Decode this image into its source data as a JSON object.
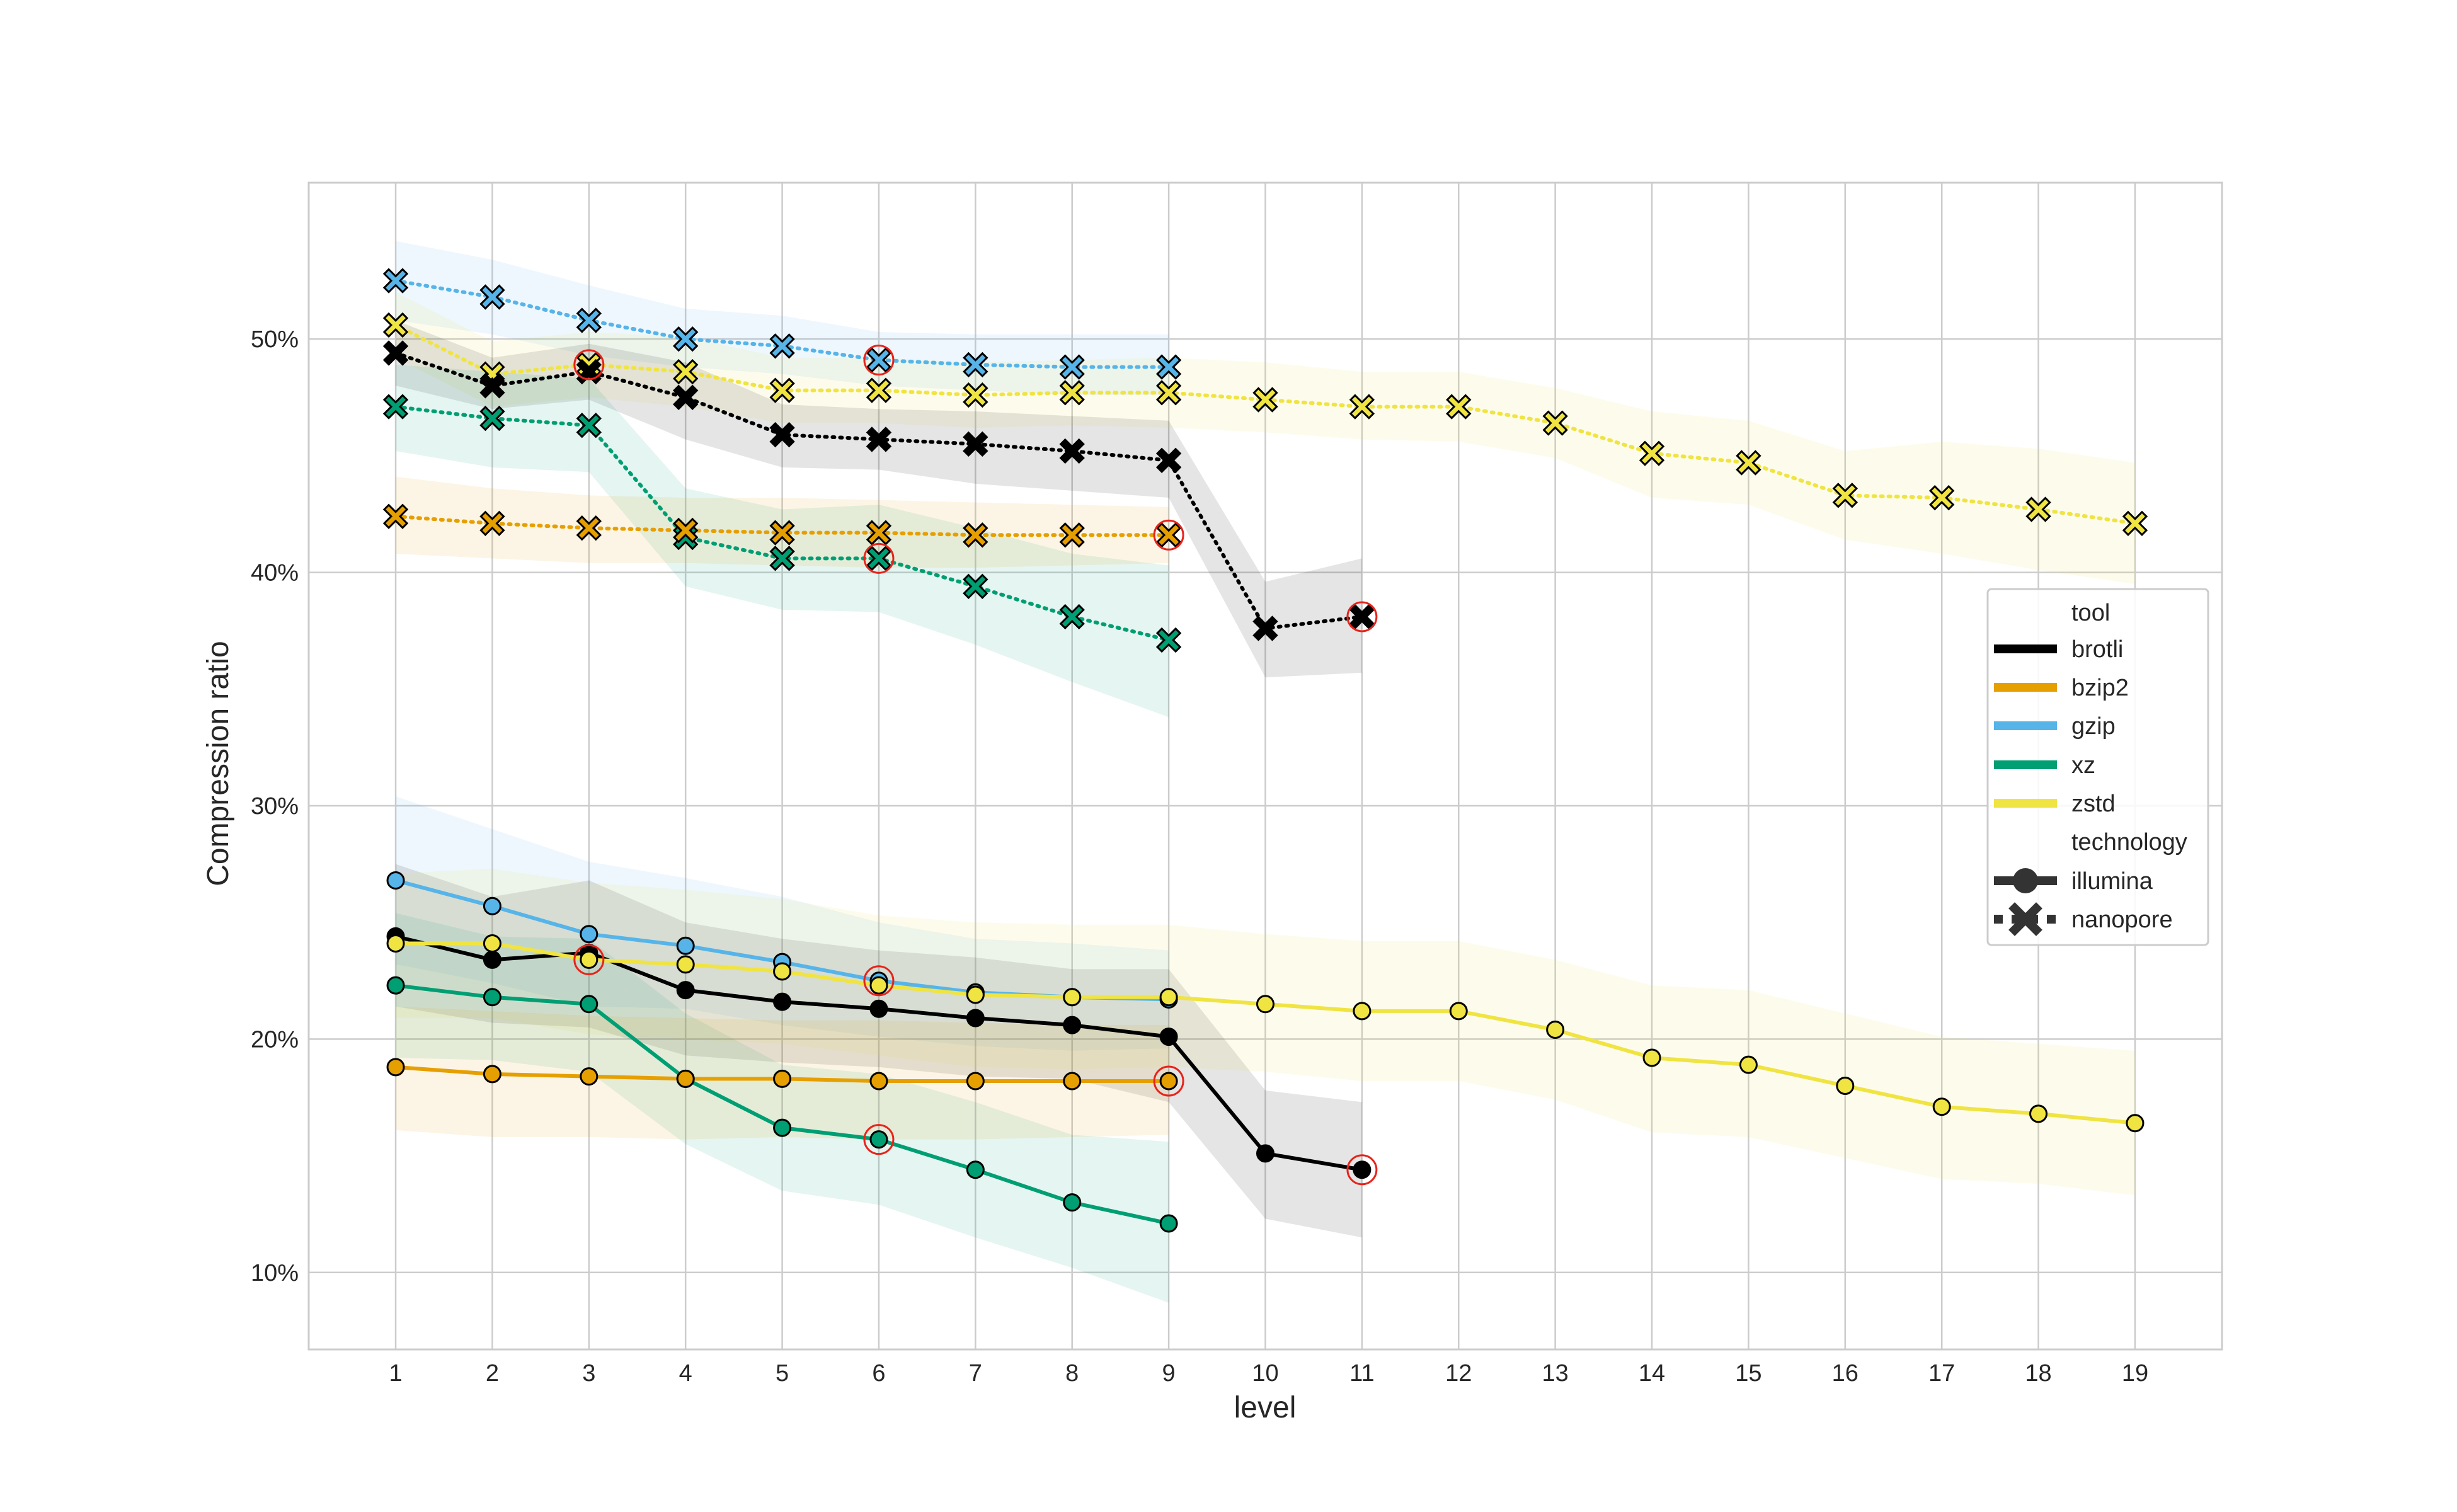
{
  "chart_data": {
    "type": "line",
    "xlabel": "level",
    "ylabel": "Compression ratio",
    "x_ticks": [
      "1",
      "2",
      "3",
      "4",
      "5",
      "6",
      "7",
      "8",
      "9",
      "10",
      "11",
      "12",
      "13",
      "14",
      "15",
      "16",
      "17",
      "18",
      "19"
    ],
    "y_ticks": [
      "10%",
      "20%",
      "30%",
      "40%",
      "50%"
    ],
    "y_tick_values": [
      10,
      20,
      30,
      40,
      50
    ],
    "xlim": [
      0.1,
      19.9
    ],
    "ylim": [
      6.7,
      56.7
    ],
    "colors": {
      "brotli": "#000000",
      "bzip2": "#e69f00",
      "gzip": "#56b4e9",
      "xz": "#009e73",
      "zstd": "#f0e442"
    },
    "series": [
      {
        "tool": "gzip",
        "technology": "nanopore",
        "x": [
          1,
          2,
          3,
          4,
          5,
          6,
          7,
          8,
          9
        ],
        "values": [
          52.5,
          51.8,
          50.8,
          50.0,
          49.7,
          49.1,
          48.9,
          48.8,
          48.8
        ],
        "lower": [
          50.8,
          50.2,
          49.3,
          48.8,
          48.5,
          48.0,
          47.8,
          47.6,
          47.6
        ],
        "upper": [
          54.2,
          53.4,
          52.3,
          51.3,
          51.0,
          50.3,
          50.2,
          50.2,
          50.2
        ],
        "optimal_level": 6
      },
      {
        "tool": "zstd",
        "technology": "nanopore",
        "x": [
          1,
          2,
          3,
          4,
          5,
          6,
          7,
          8,
          9,
          10,
          11,
          12,
          13,
          14,
          15,
          16,
          17,
          18,
          19
        ],
        "values": [
          50.6,
          48.5,
          48.9,
          48.6,
          47.8,
          47.8,
          47.6,
          47.7,
          47.7,
          47.4,
          47.1,
          47.1,
          46.4,
          45.1,
          44.7,
          43.3,
          43.2,
          42.7,
          42.1
        ],
        "lower": [
          49.2,
          47.1,
          47.5,
          47.1,
          46.4,
          46.4,
          46.2,
          46.3,
          46.2,
          46.0,
          45.7,
          45.6,
          44.9,
          43.2,
          42.9,
          41.4,
          40.8,
          40.1,
          39.5
        ],
        "upper": [
          52.0,
          49.9,
          50.3,
          50.1,
          49.2,
          49.2,
          49.0,
          49.1,
          49.2,
          49.0,
          48.6,
          48.6,
          47.9,
          46.9,
          46.5,
          45.2,
          45.6,
          45.3,
          44.7
        ],
        "optimal_level": 3
      },
      {
        "tool": "brotli",
        "technology": "nanopore",
        "x": [
          1,
          2,
          3,
          4,
          5,
          6,
          7,
          8,
          9,
          10,
          11
        ],
        "values": [
          49.4,
          48.0,
          48.6,
          47.5,
          45.9,
          45.7,
          45.5,
          45.2,
          44.8,
          37.6,
          38.1
        ],
        "lower": [
          48.0,
          47.0,
          47.4,
          45.7,
          44.5,
          44.4,
          43.8,
          43.5,
          43.2,
          35.5,
          35.7
        ],
        "upper": [
          50.8,
          49.2,
          49.8,
          49.0,
          47.2,
          47.0,
          46.9,
          46.7,
          46.5,
          39.6,
          40.6
        ],
        "optimal_level": 11
      },
      {
        "tool": "xz",
        "technology": "nanopore",
        "x": [
          1,
          2,
          3,
          4,
          5,
          6,
          7,
          8,
          9
        ],
        "values": [
          47.1,
          46.6,
          46.3,
          41.5,
          40.6,
          40.6,
          39.4,
          38.1,
          37.1
        ],
        "lower": [
          45.2,
          44.5,
          44.3,
          39.4,
          38.4,
          38.3,
          36.9,
          35.3,
          33.8
        ],
        "upper": [
          48.9,
          48.6,
          48.3,
          43.6,
          42.7,
          42.9,
          41.9,
          40.8,
          40.3
        ],
        "optimal_level": 6
      },
      {
        "tool": "bzip2",
        "technology": "nanopore",
        "x": [
          1,
          2,
          3,
          4,
          5,
          6,
          7,
          8,
          9
        ],
        "values": [
          42.4,
          42.1,
          41.9,
          41.8,
          41.7,
          41.7,
          41.6,
          41.6,
          41.6
        ],
        "lower": [
          40.8,
          40.6,
          40.4,
          40.4,
          40.3,
          40.2,
          40.2,
          40.3,
          40.4
        ],
        "upper": [
          44.1,
          43.6,
          43.3,
          43.2,
          43.2,
          43.1,
          43.0,
          42.9,
          42.8
        ],
        "optimal_level": 9
      },
      {
        "tool": "gzip",
        "technology": "illumina",
        "x": [
          1,
          2,
          3,
          4,
          5,
          6,
          7,
          8,
          9
        ],
        "values": [
          26.8,
          25.7,
          24.5,
          24.0,
          23.3,
          22.5,
          22.0,
          21.8,
          21.7
        ],
        "lower": [
          23.2,
          22.4,
          21.4,
          21.3,
          20.6,
          20.1,
          19.7,
          19.5,
          19.6
        ],
        "upper": [
          30.4,
          29.0,
          27.6,
          26.9,
          26.1,
          25.0,
          24.3,
          24.1,
          23.8
        ],
        "optimal_level": 6
      },
      {
        "tool": "brotli",
        "technology": "illumina",
        "x": [
          1,
          2,
          3,
          4,
          5,
          6,
          7,
          8,
          9,
          10,
          11
        ],
        "values": [
          24.4,
          23.4,
          23.7,
          22.1,
          21.6,
          21.3,
          20.9,
          20.6,
          20.1,
          15.1,
          14.4
        ],
        "lower": [
          21.4,
          20.7,
          20.5,
          19.3,
          19.0,
          18.8,
          18.4,
          18.3,
          17.3,
          12.3,
          11.5
        ],
        "upper": [
          27.5,
          26.1,
          26.8,
          25.0,
          24.3,
          23.8,
          23.5,
          23.0,
          23.0,
          17.8,
          17.3
        ],
        "optimal_level": 11
      },
      {
        "tool": "zstd",
        "technology": "illumina",
        "x": [
          1,
          2,
          3,
          4,
          5,
          6,
          7,
          8,
          9,
          10,
          11,
          12,
          13,
          14,
          15,
          16,
          17,
          18,
          19
        ],
        "values": [
          24.1,
          24.1,
          23.4,
          23.2,
          22.9,
          22.3,
          21.9,
          21.8,
          21.8,
          21.5,
          21.2,
          21.2,
          20.4,
          19.2,
          18.9,
          18.0,
          17.1,
          16.8,
          16.4
        ],
        "lower": [
          20.9,
          20.9,
          20.2,
          20.0,
          19.8,
          19.3,
          18.8,
          18.7,
          18.8,
          18.6,
          18.2,
          18.2,
          17.4,
          16.0,
          15.8,
          14.9,
          14.0,
          13.8,
          13.3
        ],
        "upper": [
          27.1,
          27.3,
          26.7,
          26.4,
          26.0,
          25.3,
          25.0,
          24.9,
          24.9,
          24.5,
          24.2,
          24.2,
          23.4,
          22.3,
          22.1,
          21.1,
          20.1,
          19.8,
          19.5
        ],
        "optimal_level": 3
      },
      {
        "tool": "xz",
        "technology": "illumina",
        "x": [
          1,
          2,
          3,
          4,
          5,
          6,
          7,
          8,
          9
        ],
        "values": [
          22.3,
          21.8,
          21.5,
          18.3,
          16.2,
          15.7,
          14.4,
          13.0,
          12.1
        ],
        "lower": [
          19.2,
          19.1,
          18.6,
          15.5,
          13.5,
          12.9,
          11.5,
          10.2,
          8.7
        ],
        "upper": [
          25.4,
          24.4,
          24.3,
          21.1,
          18.9,
          18.5,
          17.3,
          15.9,
          15.6
        ],
        "optimal_level": 6
      },
      {
        "tool": "bzip2",
        "technology": "illumina",
        "x": [
          1,
          2,
          3,
          4,
          5,
          6,
          7,
          8,
          9
        ],
        "values": [
          18.8,
          18.5,
          18.4,
          18.3,
          18.3,
          18.2,
          18.2,
          18.2,
          18.2
        ],
        "lower": [
          16.1,
          15.8,
          15.8,
          15.7,
          15.8,
          15.7,
          15.7,
          15.8,
          15.9
        ],
        "upper": [
          21.4,
          21.2,
          21.0,
          20.9,
          20.8,
          20.8,
          20.7,
          20.6,
          20.6
        ],
        "optimal_level": 9
      }
    ],
    "legend": {
      "placement": "right",
      "tool_title": "tool",
      "tools": [
        "brotli",
        "bzip2",
        "gzip",
        "xz",
        "zstd"
      ],
      "technology_title": "technology",
      "technologies": [
        "illumina",
        "nanopore"
      ]
    },
    "grid": true,
    "highlight_color": "#e8231a"
  }
}
